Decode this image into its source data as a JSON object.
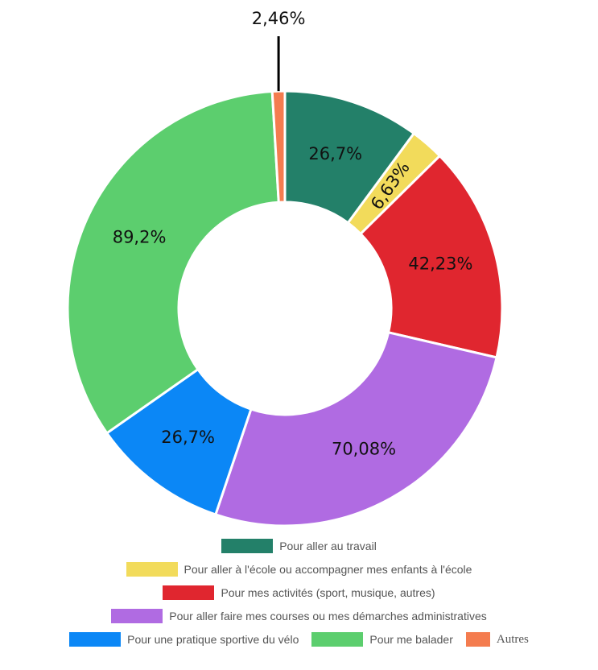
{
  "chart_data": {
    "type": "donut",
    "slices": [
      {
        "name": "Pour aller au travail",
        "value": 26.7,
        "label": "26,7%",
        "color": "#238069"
      },
      {
        "name": "Pour aller à l'école ou accompagner mes enfants à l'école",
        "value": 6.63,
        "label": "6,63%",
        "color": "#f2db5b"
      },
      {
        "name": "Pour mes activités (sport, musique, autres)",
        "value": 42.23,
        "label": "42,23%",
        "color": "#e0262f"
      },
      {
        "name": "Pour aller faire mes courses ou mes démarches administratives",
        "value": 70.08,
        "label": "70,08%",
        "color": "#b06be2"
      },
      {
        "name": "Pour une pratique sportive du vélo",
        "value": 26.7,
        "label": "26,7%",
        "color": "#0b87f6"
      },
      {
        "name": "Pour me balader",
        "value": 89.2,
        "label": "89,2%",
        "color": "#5cce6e"
      },
      {
        "name": "Autres",
        "value": 2.46,
        "label": "2,46%",
        "color": "#f47c4f"
      }
    ],
    "legend_position": "bottom"
  }
}
